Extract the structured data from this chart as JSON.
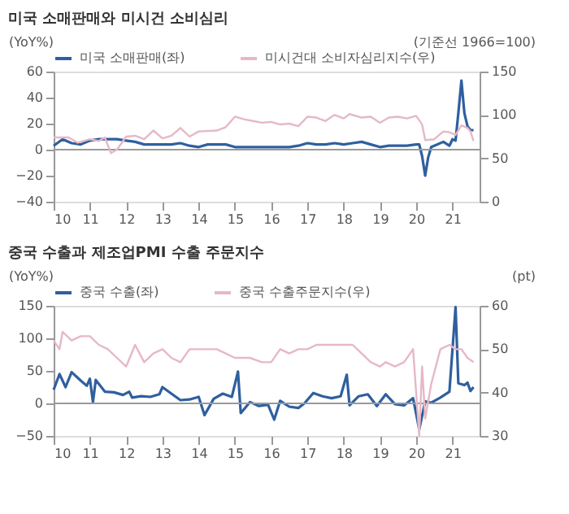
{
  "chart_data": [
    {
      "type": "line",
      "title": "미국 소매판매와 미시건 소비심리",
      "ylabel": "(YoY%)",
      "y2label": "(기준선 1966=100)",
      "legend": "top",
      "grid": false,
      "xlim": [
        "2010-01",
        "2021-10"
      ],
      "xticks": [
        {
          "value": "2010",
          "label": "10"
        },
        {
          "value": "2011",
          "label": "11"
        },
        {
          "value": "2012",
          "label": "12"
        },
        {
          "value": "2013",
          "label": "13"
        },
        {
          "value": "2014",
          "label": "14"
        },
        {
          "value": "2015",
          "label": "15"
        },
        {
          "value": "2016",
          "label": "16"
        },
        {
          "value": "2017",
          "label": "17"
        },
        {
          "value": "2018",
          "label": "18"
        },
        {
          "value": "2019",
          "label": "19"
        },
        {
          "value": "2020",
          "label": "20"
        },
        {
          "value": "2021",
          "label": "21"
        }
      ],
      "ylim": [
        -40,
        60
      ],
      "yticks": [
        -40,
        -20,
        0,
        20,
        40,
        60
      ],
      "y2lim": [
        0,
        150
      ],
      "y2ticks": [
        0,
        50,
        100,
        150
      ],
      "ref_lines": [
        {
          "axis": "y",
          "value": 0,
          "color": "#999999"
        }
      ],
      "series": [
        {
          "name": "미국 소매판매(좌)",
          "color": "#2f5f9e",
          "axis": "y",
          "x": [
            "2010-01",
            "2010-04",
            "2010-07",
            "2010-10",
            "2011-01",
            "2011-04",
            "2011-07",
            "2011-10",
            "2012-01",
            "2012-04",
            "2012-07",
            "2012-10",
            "2013-01",
            "2013-04",
            "2013-07",
            "2013-10",
            "2014-01",
            "2014-04",
            "2014-07",
            "2014-10",
            "2015-01",
            "2015-04",
            "2015-07",
            "2015-10",
            "2016-01",
            "2016-04",
            "2016-07",
            "2016-10",
            "2017-01",
            "2017-04",
            "2017-07",
            "2017-10",
            "2018-01",
            "2018-04",
            "2018-07",
            "2018-10",
            "2019-01",
            "2019-04",
            "2019-07",
            "2019-10",
            "2020-01",
            "2020-02",
            "2020-03",
            "2020-04",
            "2020-05",
            "2020-06",
            "2020-07",
            "2020-10",
            "2020-12",
            "2021-01",
            "2021-02",
            "2021-03",
            "2021-04",
            "2021-05",
            "2021-06",
            "2021-07",
            "2021-08"
          ],
          "values": [
            3,
            8,
            5,
            4,
            7,
            8,
            8,
            8,
            7,
            6,
            4,
            4,
            4,
            4,
            5,
            3,
            2,
            4,
            4,
            4,
            2,
            2,
            2,
            2,
            2,
            2,
            2,
            3,
            5,
            4,
            4,
            5,
            4,
            5,
            6,
            4,
            2,
            3,
            3,
            3,
            4,
            4,
            -5,
            -20,
            -6,
            2,
            3,
            6,
            3,
            8,
            7,
            28,
            53,
            28,
            18,
            15,
            15
          ]
        },
        {
          "name": "미시건대 소비자심리지수(우)",
          "color": "#e6b8c6",
          "axis": "y2",
          "x": [
            "2010-01",
            "2010-06",
            "2010-09",
            "2011-01",
            "2011-04",
            "2011-06",
            "2011-08",
            "2011-10",
            "2012-01",
            "2012-04",
            "2012-07",
            "2012-10",
            "2013-01",
            "2013-04",
            "2013-07",
            "2013-10",
            "2014-01",
            "2014-07",
            "2014-10",
            "2015-01",
            "2015-04",
            "2015-07",
            "2015-10",
            "2016-01",
            "2016-04",
            "2016-07",
            "2016-10",
            "2017-01",
            "2017-04",
            "2017-07",
            "2017-10",
            "2018-01",
            "2018-03",
            "2018-07",
            "2018-10",
            "2019-01",
            "2019-04",
            "2019-07",
            "2019-10",
            "2020-01",
            "2020-03",
            "2020-04",
            "2020-07",
            "2020-10",
            "2020-12",
            "2021-02",
            "2021-04",
            "2021-06",
            "2021-07",
            "2021-08"
          ],
          "values": [
            74,
            74,
            68,
            72,
            70,
            74,
            56,
            60,
            75,
            76,
            72,
            82,
            73,
            76,
            85,
            75,
            81,
            82,
            86,
            98,
            95,
            93,
            91,
            92,
            89,
            90,
            87,
            98,
            97,
            93,
            100,
            96,
            101,
            97,
            98,
            91,
            97,
            98,
            96,
            99,
            89,
            71,
            72,
            81,
            80,
            77,
            88,
            85,
            81,
            70
          ]
        }
      ]
    },
    {
      "type": "line",
      "title": "중국 수출과 제조업PMI 수출 주문지수",
      "ylabel": "(YoY%)",
      "y2label": "(pt)",
      "legend": "top",
      "grid": false,
      "xlim": [
        "2010-01",
        "2021-10"
      ],
      "xticks": [
        {
          "value": "2010",
          "label": "10"
        },
        {
          "value": "2011",
          "label": "11"
        },
        {
          "value": "2012",
          "label": "12"
        },
        {
          "value": "2013",
          "label": "13"
        },
        {
          "value": "2014",
          "label": "14"
        },
        {
          "value": "2015",
          "label": "15"
        },
        {
          "value": "2016",
          "label": "16"
        },
        {
          "value": "2017",
          "label": "17"
        },
        {
          "value": "2018",
          "label": "18"
        },
        {
          "value": "2019",
          "label": "19"
        },
        {
          "value": "2020",
          "label": "20"
        },
        {
          "value": "2021",
          "label": "21"
        }
      ],
      "ylim": [
        -50,
        150
      ],
      "yticks": [
        -50,
        0,
        50,
        100,
        150
      ],
      "y2lim": [
        30,
        60
      ],
      "y2ticks": [
        30,
        40,
        50,
        60
      ],
      "ref_lines": [
        {
          "axis": "y",
          "value": 0,
          "color": "#999999"
        }
      ],
      "series": [
        {
          "name": "중국 수출(좌)",
          "color": "#2f5f9e",
          "axis": "y",
          "x": [
            "2010-01",
            "2010-03",
            "2010-05",
            "2010-07",
            "2010-10",
            "2010-12",
            "2011-01",
            "2011-02",
            "2011-03",
            "2011-06",
            "2011-09",
            "2011-12",
            "2012-02",
            "2012-03",
            "2012-06",
            "2012-09",
            "2012-12",
            "2013-01",
            "2013-04",
            "2013-07",
            "2013-10",
            "2014-01",
            "2014-03",
            "2014-06",
            "2014-09",
            "2014-12",
            "2015-02",
            "2015-03",
            "2015-06",
            "2015-09",
            "2015-12",
            "2016-02",
            "2016-04",
            "2016-07",
            "2016-10",
            "2016-12",
            "2017-03",
            "2017-06",
            "2017-09",
            "2017-12",
            "2018-02",
            "2018-03",
            "2018-06",
            "2018-09",
            "2018-12",
            "2019-03",
            "2019-06",
            "2019-09",
            "2019-12",
            "2020-02",
            "2020-04",
            "2020-06",
            "2020-09",
            "2020-12",
            "2021-02",
            "2021-03",
            "2021-05",
            "2021-06",
            "2021-07",
            "2021-08"
          ],
          "values": [
            21,
            45,
            25,
            48,
            35,
            27,
            38,
            2,
            36,
            18,
            17,
            13,
            18,
            9,
            11,
            10,
            14,
            25,
            15,
            5,
            6,
            10,
            -18,
            7,
            15,
            10,
            49,
            -15,
            2,
            -4,
            -2,
            -25,
            4,
            -5,
            -7,
            0,
            16,
            11,
            8,
            11,
            44,
            -3,
            11,
            14,
            -4,
            14,
            -1,
            -3,
            8,
            -40,
            3,
            1,
            9,
            18,
            148,
            31,
            28,
            32,
            19,
            25
          ]
        },
        {
          "name": "중국 수출주문지수(우)",
          "color": "#e6b8c6",
          "axis": "y2",
          "x": [
            "2010-01",
            "2010-03",
            "2010-04",
            "2010-07",
            "2010-10",
            "2011-01",
            "2011-04",
            "2011-07",
            "2011-10",
            "2012-01",
            "2012-04",
            "2012-07",
            "2012-10",
            "2013-01",
            "2013-04",
            "2013-07",
            "2013-10",
            "2014-01",
            "2014-04",
            "2014-07",
            "2014-10",
            "2015-01",
            "2015-06",
            "2015-10",
            "2016-01",
            "2016-04",
            "2016-07",
            "2016-10",
            "2017-01",
            "2017-04",
            "2017-07",
            "2017-10",
            "2018-01",
            "2018-04",
            "2018-07",
            "2018-10",
            "2019-01",
            "2019-03",
            "2019-06",
            "2019-09",
            "2019-12",
            "2020-02",
            "2020-03",
            "2020-04",
            "2020-06",
            "2020-09",
            "2020-12",
            "2021-02",
            "2021-04",
            "2021-06",
            "2021-08"
          ],
          "values": [
            52,
            50,
            54,
            52,
            53,
            53,
            51,
            50,
            48,
            46,
            51,
            47,
            49,
            50,
            48,
            47,
            50,
            50,
            50,
            50,
            49,
            48,
            48,
            47,
            47,
            50,
            49,
            50,
            50,
            51,
            51,
            51,
            51,
            51,
            49,
            47,
            46,
            47,
            46,
            47,
            50,
            30,
            46,
            34,
            42,
            50,
            51,
            50,
            50,
            48,
            47
          ]
        }
      ]
    }
  ]
}
